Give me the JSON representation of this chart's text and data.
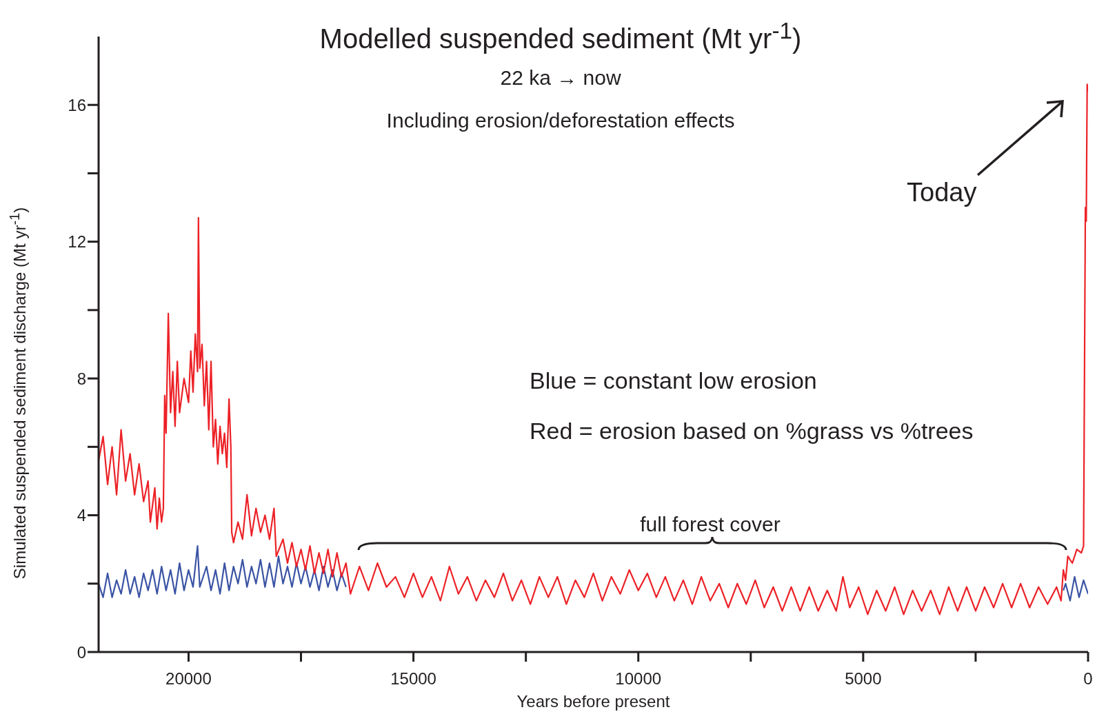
{
  "chart_data": {
    "type": "line",
    "title": "Modelled suspended sediment (Mt yr$^{-1}$)",
    "subtitle": "22 ka → now",
    "xlabel": "Years before present",
    "ylabel": "Simulated suspended sediment discharge (Mt yr$^{-1}$)",
    "annotations": [
      "Including erosion/deforestation effects",
      "Blue = constant low erosion",
      "Red = erosion based on %grass vs %trees",
      "full forest cover",
      "Today"
    ],
    "xlim": [
      22000,
      0
    ],
    "xticks": [
      20000,
      {
        "value": 17500,
        "label": null
      },
      15000,
      {
        "value": 12500,
        "label": null
      },
      10000,
      {
        "value": 7500,
        "label": null
      },
      5000,
      {
        "value": 2500,
        "label": null
      },
      0
    ],
    "ylim": [
      0,
      18
    ],
    "yticks": [
      0,
      {
        "value": 2,
        "label": null
      },
      4,
      {
        "value": 6,
        "label": null
      },
      8,
      {
        "value": 10,
        "label": null
      },
      12,
      {
        "value": 14,
        "label": null
      },
      16
    ],
    "marker": "none",
    "series": [
      {
        "color": "#3a53a4",
        "x": [
          22000,
          21900,
          21800,
          21700,
          21600,
          21500,
          21400,
          21300,
          21200,
          21100,
          21000,
          20900,
          20800,
          20700,
          20600,
          20500,
          20400,
          20300,
          20200,
          20100,
          20000,
          19900,
          19800,
          19750,
          19600,
          19500,
          19400,
          19300,
          19200,
          19100,
          19000,
          18900,
          18800,
          18700,
          18600,
          18500,
          18400,
          18300,
          18200,
          18100,
          18000,
          17900,
          17800,
          17700,
          17600,
          17500,
          17400,
          17300,
          17200,
          17100,
          17000,
          16900,
          16800,
          16700,
          16600,
          16500,
          10000,
          550,
          500,
          400,
          300,
          200,
          100,
          0
        ],
        "values": [
          2.0,
          1.6,
          2.3,
          1.6,
          2.1,
          1.7,
          2.4,
          1.7,
          2.2,
          1.6,
          2.3,
          1.8,
          2.4,
          1.7,
          2.5,
          1.8,
          2.4,
          1.7,
          2.6,
          1.8,
          2.4,
          1.9,
          3.1,
          1.9,
          2.5,
          1.8,
          2.4,
          1.7,
          2.6,
          1.8,
          2.5,
          2.0,
          2.7,
          1.9,
          2.5,
          2.0,
          2.7,
          1.9,
          2.6,
          1.9,
          2.8,
          2.0,
          2.5,
          1.9,
          2.6,
          2.0,
          2.5,
          1.9,
          2.4,
          1.8,
          2.5,
          1.9,
          2.4,
          1.8,
          2.3,
          1.9,
          null,
          1.8,
          2.0,
          1.5,
          2.2,
          1.6,
          2.1,
          1.7
        ]
      },
      {
        "color": "#ec2227",
        "x": [
          22000,
          21900,
          21800,
          21700,
          21600,
          21500,
          21400,
          21300,
          21200,
          21100,
          21000,
          20900,
          20850,
          20750,
          20700,
          20650,
          20600,
          20560,
          20530,
          20500,
          20450,
          20400,
          20350,
          20300,
          20250,
          20200,
          20100,
          20000,
          19950,
          19900,
          19850,
          19800,
          19780,
          19750,
          19700,
          19650,
          19600,
          19550,
          19500,
          19450,
          19400,
          19350,
          19300,
          19250,
          19200,
          19150,
          19100,
          19060,
          19040,
          19000,
          18900,
          18800,
          18700,
          18600,
          18500,
          18400,
          18300,
          18200,
          18100,
          18050,
          17900,
          17800,
          17700,
          17600,
          17500,
          17400,
          17300,
          17200,
          17100,
          17000,
          16900,
          16800,
          16700,
          16600,
          16500,
          16400,
          16200,
          16000,
          15800,
          15600,
          15400,
          15200,
          15000,
          14800,
          14600,
          14400,
          14200,
          14000,
          13800,
          13600,
          13400,
          13200,
          13000,
          12800,
          12600,
          12400,
          12200,
          12000,
          11800,
          11600,
          11400,
          11200,
          11000,
          10800,
          10600,
          10400,
          10200,
          10000,
          9800,
          9600,
          9400,
          9200,
          9000,
          8800,
          8600,
          8400,
          8200,
          8000,
          7800,
          7600,
          7400,
          7200,
          7000,
          6800,
          6600,
          6400,
          6200,
          6000,
          5800,
          5600,
          5450,
          5300,
          5100,
          4900,
          4700,
          4500,
          4300,
          4100,
          3900,
          3700,
          3500,
          3300,
          3100,
          2900,
          2700,
          2500,
          2300,
          2100,
          1900,
          1700,
          1500,
          1300,
          1100,
          900,
          700,
          600,
          550,
          500,
          450,
          350,
          250,
          150,
          100,
          60,
          40,
          20,
          0
        ],
        "values": [
          5.6,
          6.3,
          4.9,
          6.0,
          4.6,
          6.5,
          5.0,
          5.8,
          4.6,
          5.5,
          4.4,
          5.0,
          3.8,
          4.8,
          3.6,
          4.5,
          3.8,
          4.2,
          7.5,
          6.4,
          9.9,
          7.0,
          8.2,
          6.6,
          8.5,
          7.0,
          8.0,
          7.3,
          8.8,
          7.6,
          9.3,
          8.2,
          12.7,
          8.3,
          9.0,
          7.2,
          8.5,
          6.5,
          8.5,
          6.0,
          6.8,
          5.5,
          6.6,
          5.8,
          6.4,
          5.4,
          7.4,
          6.0,
          3.5,
          3.2,
          3.8,
          3.3,
          4.6,
          3.4,
          4.2,
          3.5,
          4.0,
          3.3,
          4.2,
          2.8,
          3.3,
          2.6,
          3.2,
          2.5,
          3.0,
          2.4,
          3.1,
          2.3,
          2.9,
          2.3,
          3.0,
          2.2,
          2.9,
          2.2,
          2.6,
          1.7,
          2.5,
          1.8,
          2.6,
          1.9,
          2.2,
          1.6,
          2.3,
          1.6,
          2.2,
          1.5,
          2.5,
          1.7,
          2.2,
          1.5,
          2.1,
          1.6,
          2.3,
          1.5,
          2.1,
          1.4,
          2.2,
          1.6,
          2.2,
          1.4,
          2.1,
          1.6,
          2.3,
          1.5,
          2.2,
          1.7,
          2.4,
          1.8,
          2.3,
          1.6,
          2.2,
          1.5,
          2.1,
          1.4,
          2.2,
          1.5,
          2.0,
          1.3,
          2.0,
          1.4,
          2.1,
          1.3,
          1.9,
          1.2,
          1.9,
          1.2,
          1.9,
          1.2,
          1.8,
          1.2,
          2.2,
          1.3,
          1.9,
          1.1,
          1.8,
          1.2,
          1.9,
          1.1,
          1.8,
          1.2,
          1.8,
          1.1,
          1.9,
          1.2,
          1.9,
          1.2,
          1.9,
          1.3,
          2.0,
          1.3,
          2.0,
          1.3,
          1.9,
          1.4,
          1.9,
          1.5,
          2.4,
          2.1,
          2.8,
          2.6,
          3.0,
          2.9,
          3.1,
          13.0,
          12.6,
          16.6,
          16.4
        ]
      }
    ]
  }
}
